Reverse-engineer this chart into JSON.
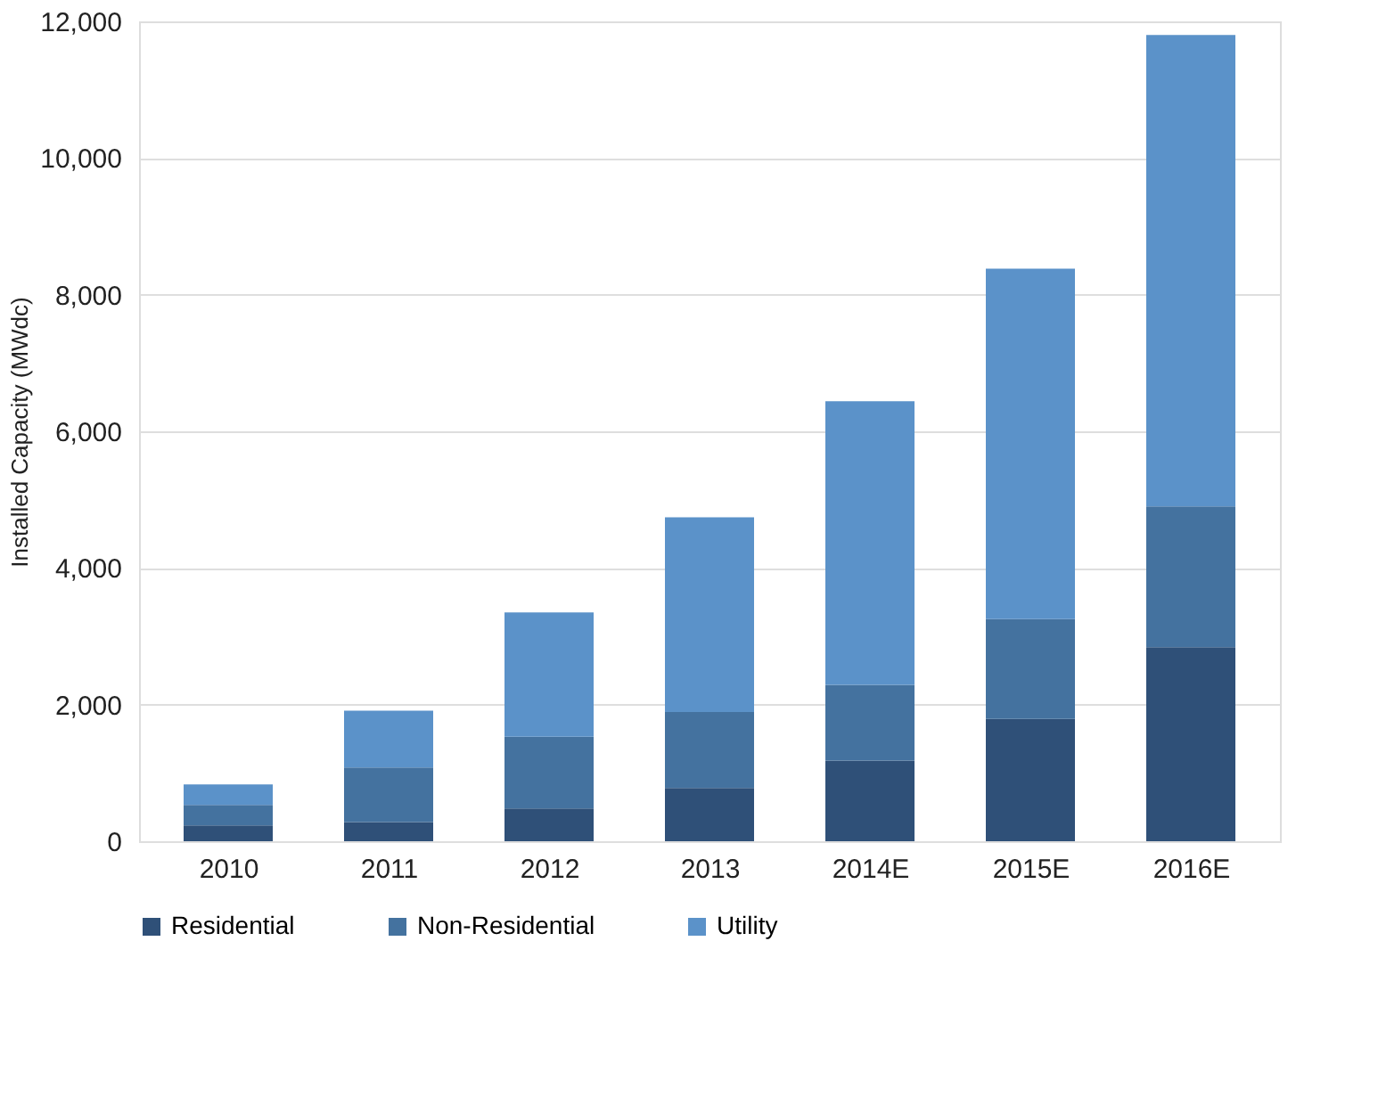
{
  "chart_data": {
    "type": "bar",
    "stacked": true,
    "ylabel": "Installed Capacity (MWdc)",
    "categories": [
      "2010",
      "2011",
      "2012",
      "2013",
      "2014E",
      "2015E",
      "2016E"
    ],
    "series": [
      {
        "name": "Residential",
        "color": "#2f5078",
        "values": [
          230,
          280,
          480,
          780,
          1180,
          1790,
          2840
        ]
      },
      {
        "name": "Non-Residential",
        "color": "#44729f",
        "values": [
          300,
          800,
          1050,
          1110,
          1110,
          1460,
          2060
        ]
      },
      {
        "name": "Utility",
        "color": "#5b92c9",
        "values": [
          300,
          830,
          1820,
          2850,
          4150,
          5130,
          6900
        ]
      }
    ],
    "ylim": [
      0,
      12000
    ],
    "yticks": [
      0,
      {
        "value": 2000,
        "label": "2,000"
      },
      {
        "value": 4000,
        "label": "4,000"
      },
      {
        "value": 6000,
        "label": "6,000"
      },
      {
        "value": 8000,
        "label": "8,000"
      },
      {
        "value": 10000,
        "label": "10,000"
      },
      {
        "value": 12000,
        "label": "12,000"
      }
    ],
    "grid": "y",
    "legend": "bottom"
  }
}
